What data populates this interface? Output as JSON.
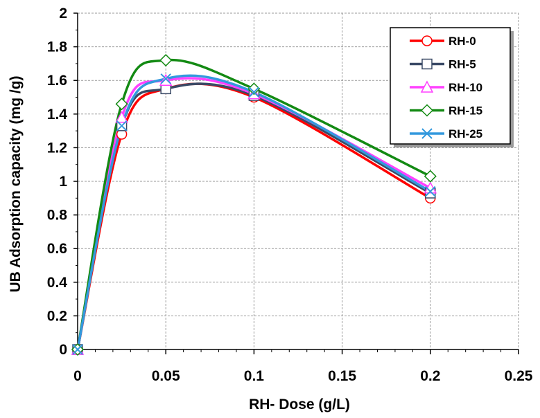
{
  "chart_data": {
    "type": "line",
    "title": "",
    "xlabel": "RH- Dose (g/L)",
    "ylabel": "UB  Adsorption capacity  (mg /g)",
    "xlim": [
      0,
      0.25
    ],
    "ylim": [
      0,
      2
    ],
    "x_ticks": [
      "0",
      "0.05",
      "0.1",
      "0.15",
      "0.2",
      "0.25"
    ],
    "x_tick_values": [
      0,
      0.05,
      0.1,
      0.15,
      0.2,
      0.25
    ],
    "y_ticks": [
      "0",
      "0.2",
      "0.4",
      "0.6",
      "0.8",
      "1",
      "1.2",
      "1.4",
      "1.6",
      "1.8",
      "2"
    ],
    "y_tick_values": [
      0,
      0.2,
      0.4,
      0.6,
      0.8,
      1,
      1.2,
      1.4,
      1.6,
      1.8,
      2
    ],
    "grid": true,
    "legend_position": "top-right",
    "x": [
      0,
      0.025,
      0.05,
      0.1,
      0.2
    ],
    "series": [
      {
        "name": "RH-0",
        "values": [
          0,
          1.28,
          1.55,
          1.5,
          0.9
        ],
        "color": "#ff0000",
        "marker": "circle"
      },
      {
        "name": "RH-5",
        "values": [
          0,
          1.33,
          1.55,
          1.51,
          0.93
        ],
        "color": "#3a4a66",
        "marker": "square"
      },
      {
        "name": "RH-10",
        "values": [
          0,
          1.38,
          1.6,
          1.52,
          0.96
        ],
        "color": "#ff40ff",
        "marker": "triangle"
      },
      {
        "name": "RH-15",
        "values": [
          0,
          1.46,
          1.72,
          1.55,
          1.03
        ],
        "color": "#138a13",
        "marker": "diamond"
      },
      {
        "name": "RH-25",
        "values": [
          0,
          1.33,
          1.61,
          1.53,
          0.94
        ],
        "color": "#3399dd",
        "marker": "x"
      }
    ]
  }
}
